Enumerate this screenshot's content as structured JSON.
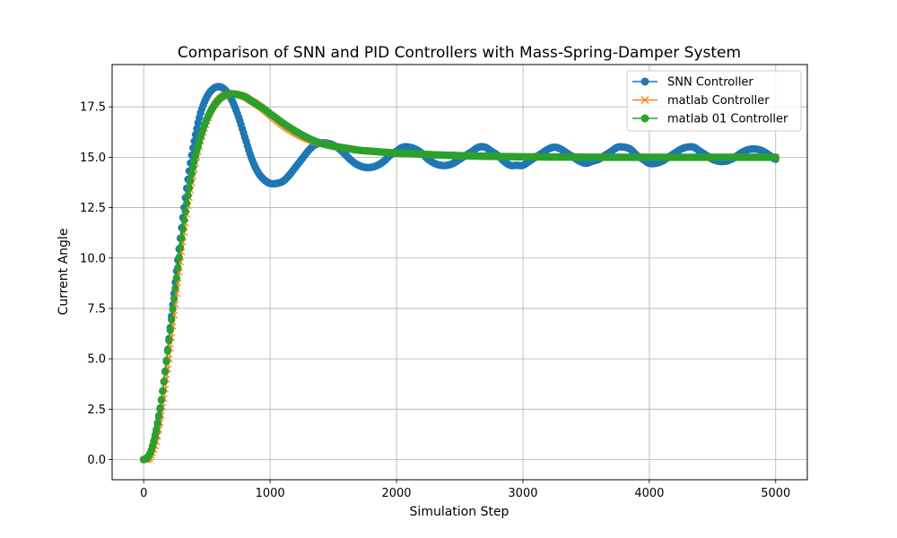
{
  "chart_data": {
    "type": "line",
    "title": "Comparison of SNN and PID Controllers with Mass-Spring-Damper System",
    "xlabel": "Simulation Step",
    "ylabel": "Current Angle",
    "xlim": [
      -250,
      5250
    ],
    "ylim": [
      -1.0,
      19.6
    ],
    "xticks": [
      0,
      1000,
      2000,
      3000,
      4000,
      5000
    ],
    "xtick_labels": [
      "0",
      "1000",
      "2000",
      "3000",
      "4000",
      "5000"
    ],
    "yticks": [
      0.0,
      2.5,
      5.0,
      7.5,
      10.0,
      12.5,
      15.0,
      17.5
    ],
    "ytick_labels": [
      "0.0",
      "2.5",
      "5.0",
      "7.5",
      "10.0",
      "12.5",
      "15.0",
      "17.5"
    ],
    "grid": true,
    "legend_position": "top-right",
    "series": [
      {
        "name": "SNN Controller",
        "color": "#1f77b4",
        "marker": "circle",
        "x": [
          0,
          50,
          100,
          150,
          200,
          250,
          300,
          350,
          400,
          450,
          500,
          550,
          600,
          650,
          700,
          750,
          800,
          850,
          900,
          950,
          1000,
          1050,
          1100,
          1150,
          1200,
          1250,
          1300,
          1350,
          1400,
          1450,
          1500,
          1550,
          1600,
          1650,
          1700,
          1750,
          1800,
          1850,
          1900,
          1950,
          2000,
          2050,
          2100,
          2150,
          2200,
          2250,
          2300,
          2350,
          2400,
          2450,
          2500,
          2550,
          2600,
          2650,
          2700,
          2750,
          2800,
          2850,
          2900,
          2950,
          3000,
          3050,
          3100,
          3150,
          3200,
          3250,
          3300,
          3350,
          3400,
          3450,
          3500,
          3550,
          3600,
          3650,
          3700,
          3750,
          3800,
          3850,
          3900,
          3950,
          4000,
          4050,
          4100,
          4150,
          4200,
          4250,
          4300,
          4350,
          4400,
          4450,
          4500,
          4550,
          4600,
          4650,
          4700,
          4750,
          4800,
          4850,
          4900,
          4950,
          5000
        ],
        "y": [
          0.0,
          0.3,
          1.4,
          3.4,
          6.0,
          8.8,
          11.5,
          13.9,
          15.8,
          17.2,
          18.0,
          18.4,
          18.5,
          18.3,
          17.8,
          17.0,
          16.0,
          15.0,
          14.3,
          13.9,
          13.7,
          13.7,
          13.8,
          14.1,
          14.5,
          14.9,
          15.3,
          15.6,
          15.7,
          15.7,
          15.6,
          15.4,
          15.1,
          14.8,
          14.6,
          14.5,
          14.5,
          14.6,
          14.8,
          15.1,
          15.3,
          15.5,
          15.5,
          15.4,
          15.2,
          14.9,
          14.7,
          14.6,
          14.6,
          14.7,
          14.9,
          15.1,
          15.3,
          15.5,
          15.5,
          15.3,
          15.1,
          14.8,
          14.6,
          14.6,
          14.6,
          14.8,
          15.0,
          15.2,
          15.4,
          15.5,
          15.4,
          15.2,
          15.0,
          14.8,
          14.7,
          14.8,
          14.9,
          15.1,
          15.3,
          15.5,
          15.5,
          15.4,
          15.1,
          14.9,
          14.7,
          14.7,
          14.8,
          15.0,
          15.2,
          15.4,
          15.5,
          15.5,
          15.3,
          15.1,
          14.9,
          14.8,
          14.8,
          14.9,
          15.1,
          15.3,
          15.4,
          15.4,
          15.3,
          15.1,
          14.9
        ]
      },
      {
        "name": "matlab Controller",
        "color": "#ff7f0e",
        "marker": "x",
        "x": [
          0,
          50,
          100,
          150,
          200,
          250,
          300,
          350,
          400,
          450,
          500,
          550,
          600,
          650,
          700,
          750,
          800,
          850,
          900,
          1000,
          1100,
          1200,
          1300,
          1400,
          1500,
          1600,
          1700,
          1800,
          1900,
          2000,
          2200,
          2400,
          2600,
          2800,
          3000,
          3500,
          4000,
          4500,
          5000
        ],
        "y": [
          0.0,
          0.1,
          0.9,
          2.6,
          5.0,
          7.7,
          10.3,
          12.6,
          14.4,
          15.8,
          16.8,
          17.5,
          17.9,
          18.1,
          18.15,
          18.1,
          18.0,
          17.8,
          17.6,
          17.1,
          16.6,
          16.2,
          15.9,
          15.7,
          15.55,
          15.45,
          15.35,
          15.3,
          15.25,
          15.2,
          15.15,
          15.1,
          15.08,
          15.05,
          15.03,
          15.01,
          15.0,
          15.0,
          15.0
        ]
      },
      {
        "name": "matlab 01 Controller",
        "color": "#2ca02c",
        "marker": "circle",
        "x": [
          0,
          50,
          100,
          150,
          200,
          250,
          300,
          350,
          400,
          450,
          500,
          550,
          600,
          650,
          700,
          750,
          800,
          850,
          900,
          950,
          1000,
          1100,
          1200,
          1300,
          1400,
          1500,
          1600,
          1700,
          1800,
          1900,
          2000,
          2100,
          2200,
          2300,
          2400,
          2500,
          2600,
          2700,
          2800,
          2900,
          3000,
          3100,
          3200,
          3300,
          3400,
          3500,
          3600,
          3700,
          3800,
          3900,
          4000,
          4100,
          4200,
          4300,
          4400,
          4500,
          4600,
          4700,
          4800,
          4900,
          5000
        ],
        "y": [
          0.0,
          0.3,
          1.5,
          3.4,
          5.9,
          8.5,
          11.0,
          13.1,
          14.8,
          16.0,
          16.9,
          17.5,
          17.9,
          18.1,
          18.15,
          18.1,
          18.0,
          17.8,
          17.6,
          17.4,
          17.15,
          16.7,
          16.3,
          15.95,
          15.7,
          15.55,
          15.45,
          15.35,
          15.3,
          15.25,
          15.2,
          15.18,
          15.15,
          15.12,
          15.1,
          15.08,
          15.06,
          15.05,
          15.04,
          15.03,
          15.02,
          15.02,
          15.01,
          15.01,
          15.01,
          15.0,
          15.0,
          15.0,
          15.0,
          15.0,
          15.0,
          15.0,
          15.0,
          15.0,
          15.0,
          15.0,
          15.0,
          15.0,
          15.0,
          15.0,
          15.0
        ]
      }
    ]
  }
}
